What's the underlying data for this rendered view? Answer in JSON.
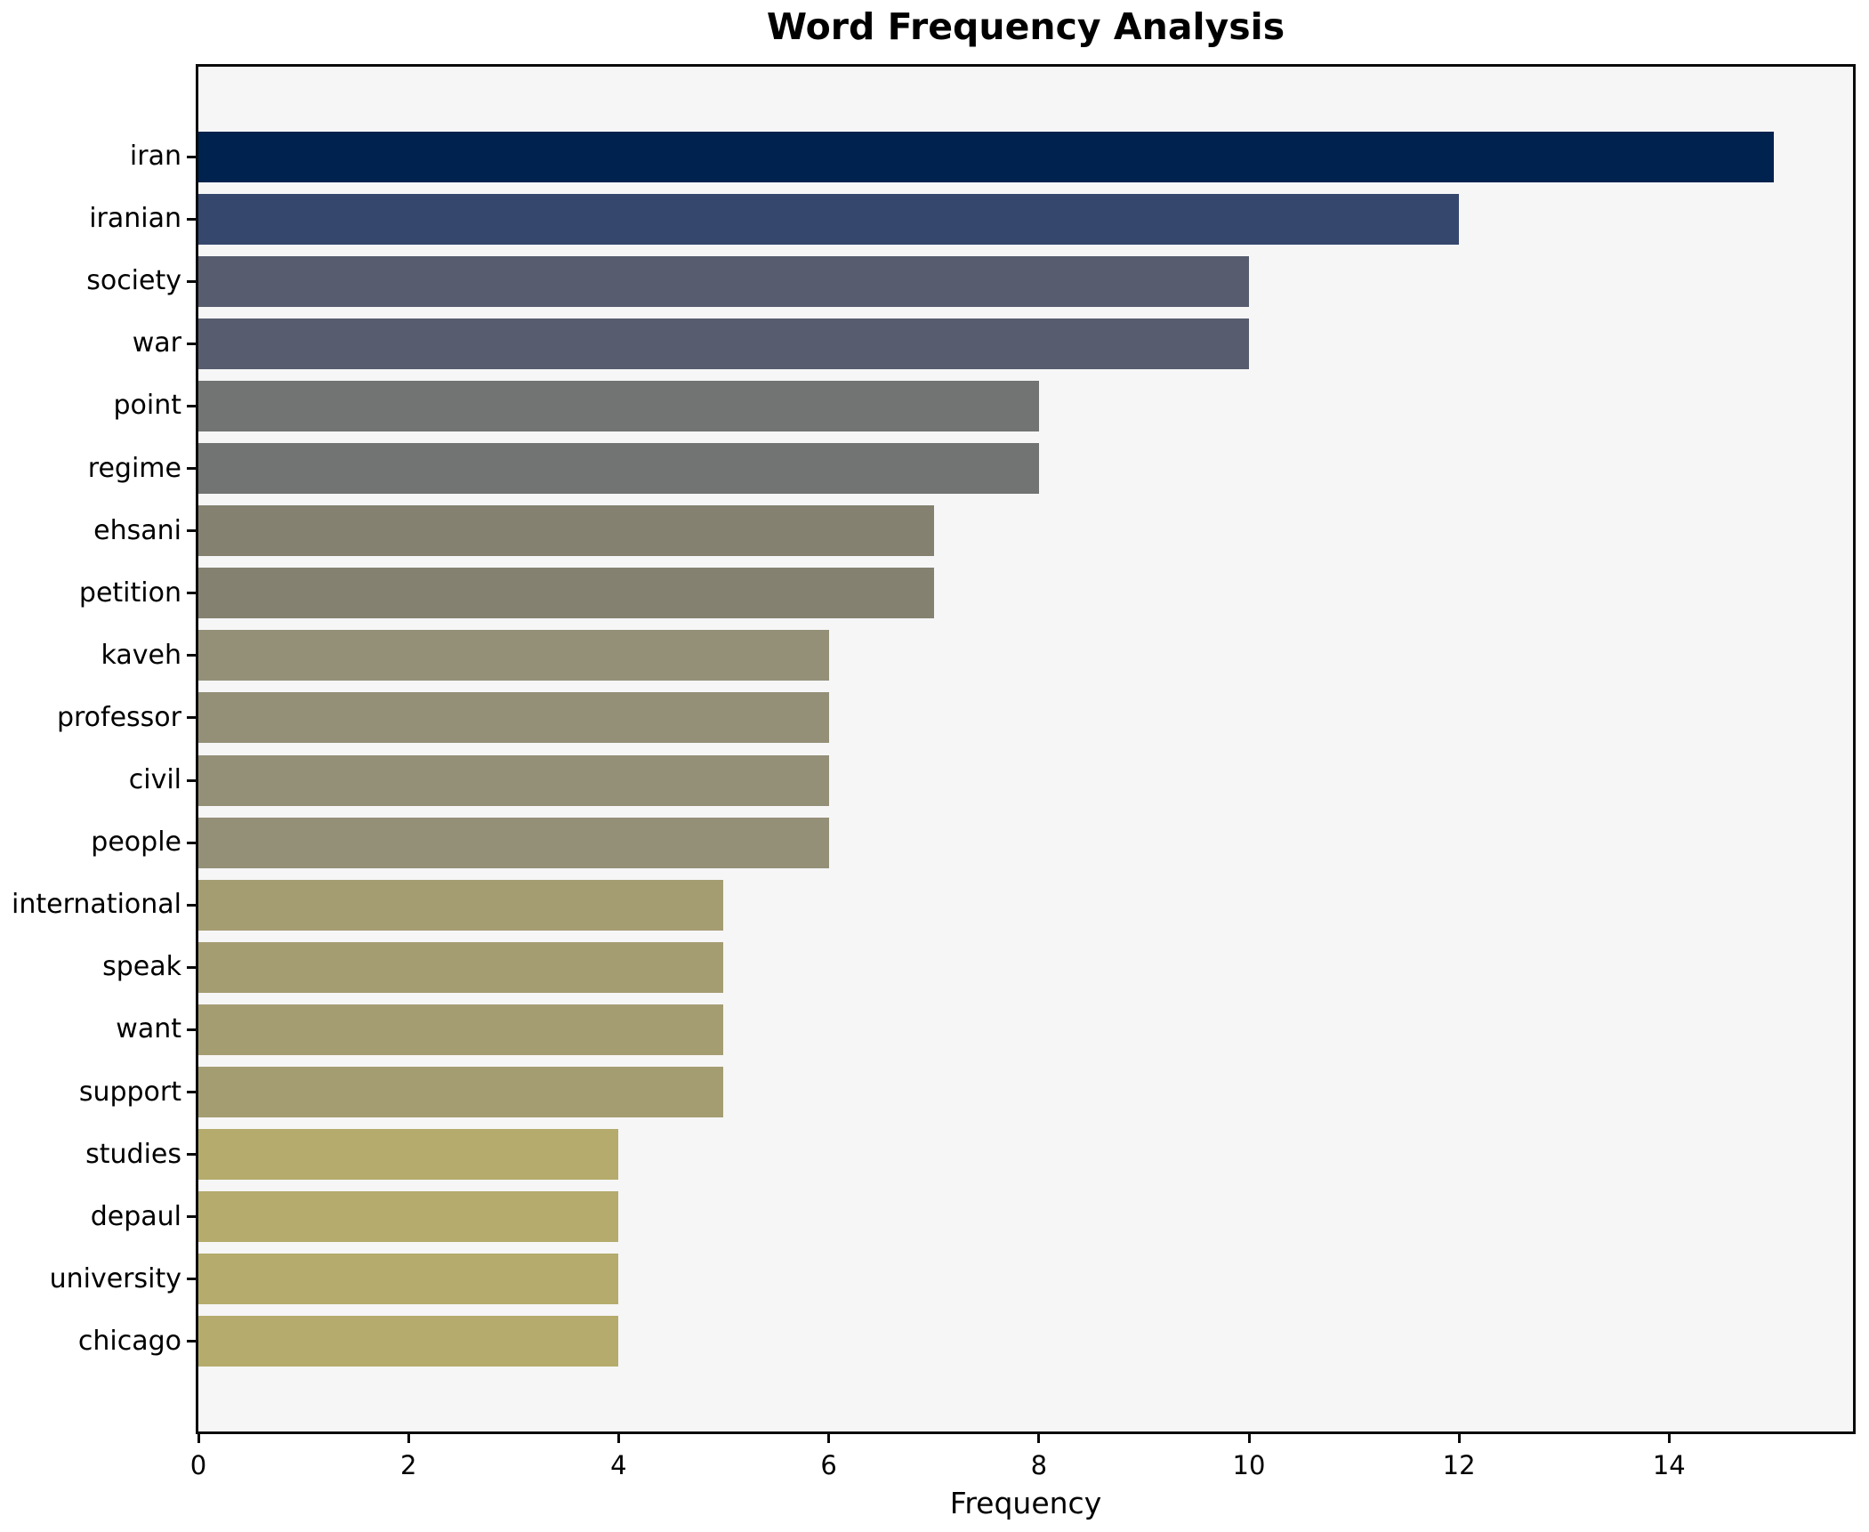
{
  "chart_data": {
    "type": "bar",
    "orientation": "horizontal",
    "title": "Word Frequency Analysis",
    "xlabel": "Frequency",
    "ylabel": "",
    "categories": [
      "iran",
      "iranian",
      "society",
      "war",
      "point",
      "regime",
      "ehsani",
      "petition",
      "kaveh",
      "professor",
      "civil",
      "people",
      "international",
      "speak",
      "want",
      "support",
      "studies",
      "depaul",
      "university",
      "chicago"
    ],
    "values": [
      15,
      12,
      10,
      10,
      8,
      8,
      7,
      7,
      6,
      6,
      6,
      6,
      5,
      5,
      5,
      5,
      4,
      4,
      4,
      4
    ],
    "bar_colors": [
      "#00224e",
      "#36476e",
      "#575d6e",
      "#575d6e",
      "#727473",
      "#727473",
      "#848170",
      "#848170",
      "#949078",
      "#949078",
      "#949078",
      "#949078",
      "#a59d72",
      "#a59d72",
      "#a59d72",
      "#a59d72",
      "#b4ab6c",
      "#b4ab6c",
      "#b4ab6c",
      "#b4ab6c"
    ],
    "xticks": [
      0,
      2,
      4,
      6,
      8,
      10,
      12,
      14
    ],
    "xlim": [
      0,
      15.75
    ],
    "grid": false,
    "legend_position": "none",
    "colors": {
      "axes_background": "#f6f6f7",
      "figure_background": "#ffffff",
      "spine": "#0a0a0a",
      "text": "#000000"
    }
  }
}
